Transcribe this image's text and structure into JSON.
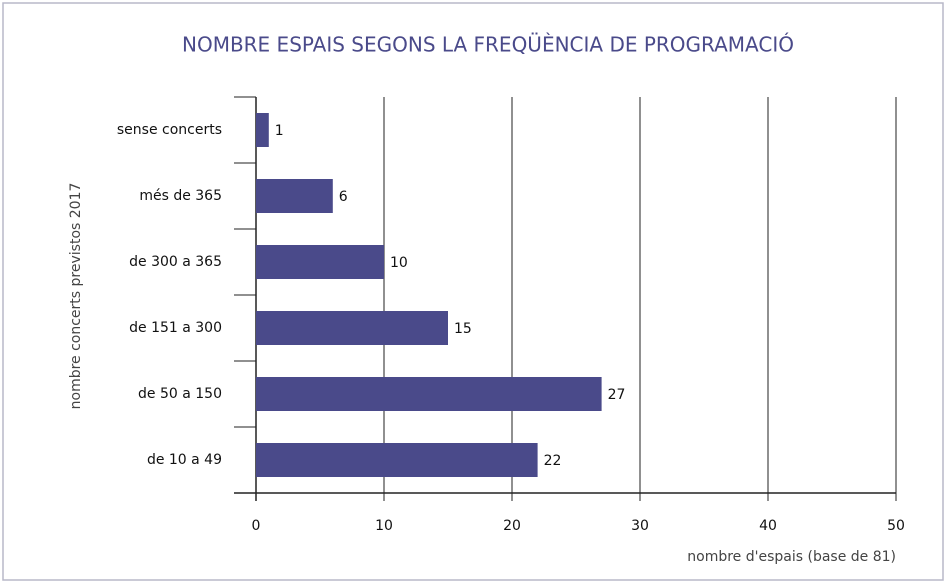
{
  "chart_data": {
    "type": "bar",
    "orientation": "horizontal",
    "title": "NOMBRE ESPAIS SEGONS LA FREQÜÈNCIA DE PROGRAMACIÓ",
    "y_label": "nombre concerts previstos 2017",
    "x_label": "nombre d'espais (base de 81)",
    "categories": [
      "sense concerts",
      "més de 365",
      "de 300 a 365",
      "de 151 a 300",
      "de 50 a 150",
      "de 10 a 49"
    ],
    "values": [
      1,
      6,
      10,
      15,
      27,
      22
    ],
    "color": "#4a4a8a",
    "xlim": [
      0,
      50
    ],
    "xticks": [
      0,
      10,
      20,
      30,
      40,
      50
    ],
    "grid": true
  }
}
